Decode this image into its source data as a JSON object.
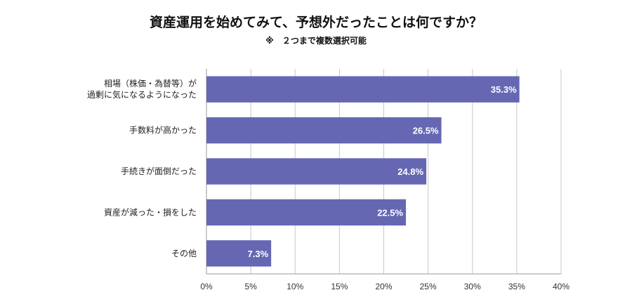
{
  "chart_data": {
    "type": "bar",
    "orientation": "horizontal",
    "title": "資産運用を始めてみて、予想外だったことは何ですか？",
    "subtitle": "※　２つまで複数選択可能",
    "categories": [
      [
        "相場（株価・為替等）が",
        "過剰に気になるようになった"
      ],
      [
        "手数料が高かった"
      ],
      [
        "手続きが面倒だった"
      ],
      [
        "資産が減った・損をした"
      ],
      [
        "その他"
      ]
    ],
    "values": [
      35.3,
      26.5,
      24.8,
      22.5,
      7.3
    ],
    "value_labels": [
      "35.3%",
      "26.5%",
      "24.8%",
      "22.5%",
      "7.3%"
    ],
    "x_ticks": [
      "0%",
      "5%",
      "10%",
      "15%",
      "20%",
      "25%",
      "30%",
      "35%",
      "40%"
    ],
    "xlim": [
      0,
      40
    ],
    "grid": true,
    "legend": "none",
    "bar_color": "#6667b3"
  }
}
